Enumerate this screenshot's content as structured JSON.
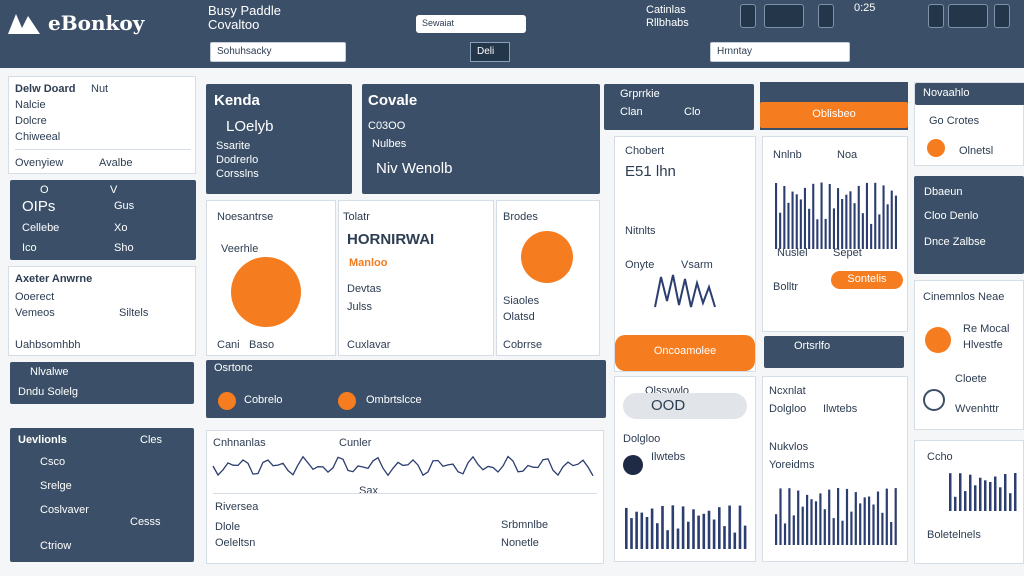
{
  "header": {
    "logo_text": "eBonkoy",
    "title_line1": "Busy Paddle",
    "title_line2": "Covaltoo",
    "search_placeholder": "Sewaiat",
    "info_line1": "Catinlas",
    "info_line2": "Rllbhabs",
    "clock": "0:25",
    "field_left": "Sohuhsacky",
    "field_mid": "Deli",
    "field_right": "Hrnntay"
  },
  "sidebar": {
    "section1_title": "Delw Doard",
    "section1_tag": "Nut",
    "section1_rows": [
      "Nalcie",
      "Dolcre",
      "Chiweeal"
    ],
    "section1_footer_left": "Ovenyiew",
    "section1_footer_right": "Avalbe",
    "table_rows": [
      [
        "O",
        "V"
      ],
      [
        "OIPs",
        "Gus"
      ],
      [
        "Cellebe",
        "Xo"
      ],
      [
        "Ico",
        "Sho"
      ]
    ],
    "section2_title": "Axeter Anwrne",
    "section2_rows": [
      "Ooerect",
      "Vemeos",
      "Siltels"
    ],
    "section2_footer": "Uahbsomhbh",
    "dark2_title": "Nlvalwe",
    "dark2_sub": "Dndu Solelg",
    "list_title": "Uevlionls",
    "list_badge": "Cles",
    "list_items": [
      "Csco",
      "Srelge",
      "Coslvaver",
      "Cesss",
      "Ctriow"
    ]
  },
  "top_cards": {
    "card1": {
      "title": "Kenda",
      "value1": "LOelyb",
      "rows": [
        "Ssarite",
        "Dodrerlo",
        "Corsslns"
      ]
    },
    "card2": {
      "title": "Covale",
      "value": "C03OO",
      "sub": "Nulbes",
      "row": "Niv Wenolb"
    },
    "card3": {
      "title": "Grprrkie",
      "a": "Clan",
      "b": "Clo"
    },
    "card4": {
      "title": "Oblisbeo"
    },
    "card5": {
      "title": "Novaahlo",
      "sub": "Go Crotes",
      "row": "Olnetsl"
    }
  },
  "mid": {
    "stat1_title": "Noesantrse",
    "stat1_sub": "Veerhle",
    "stat1_footer_a": "Cani",
    "stat1_footer_b": "Baso",
    "stat2_title": "Tolatr",
    "stat2_big": "HORNIRWAI",
    "stat2_sub": "Manloo",
    "stat2_rows": [
      "Devtas",
      "Julss",
      "Cuxlavar"
    ],
    "stat3_title": "Brodes",
    "stat3_rows": [
      "Siaoles",
      "Olatsd",
      "Cobrrse"
    ],
    "gauge_title": "Chobert",
    "gauge_value": "E51 lhn",
    "gauge_sub": "Nitnlts",
    "gauge_labels": [
      "Onyte",
      "Vsarm"
    ],
    "gauge_pill": "Oncoamolee"
  },
  "bar_chart": {
    "title": "Nnlnb",
    "tag": "Noa",
    "labels": [
      "Nuslel",
      "Sepet"
    ],
    "button": "Sontelis"
  },
  "right_panel": {
    "title": "Cinemnlos Neae",
    "sub": "Re Mocal",
    "sub2": "Hlvestfe",
    "rows": [
      "Bolltr",
      "Cloete",
      "Wvenhttr"
    ]
  },
  "strip": {
    "a": "Osrtonc",
    "b": "Cobrelo",
    "c": "Ombrtslcce",
    "d": "Ortsrlfo"
  },
  "line_chart": {
    "title": "Cnhnanlas",
    "sub": "Cunler",
    "axis_label": "Sax"
  },
  "bottom": {
    "title": "Riversea",
    "sub": "Boletelnels",
    "rows": [
      "Dlole",
      "Oeleltsn"
    ],
    "right": "Srbmnlbe",
    "right2": "Nonetle"
  },
  "toggle": {
    "label": "Olssvwlo",
    "value": "OOD"
  },
  "list3": {
    "title": "Ncxnlat",
    "rows": [
      "Dolgloo",
      "Ilwtebs"
    ],
    "badge": "Nukvlos",
    "sub": "Yoreidms"
  },
  "footer_right": {
    "title": "Dbaeun",
    "sub": "Cloo Denlo",
    "sub2": "Dnce Zalbse",
    "chart_label": "Ccho"
  },
  "colors": {
    "navy": "#3b5068",
    "orange": "#f57c1f",
    "bg": "#f4f6f8"
  }
}
